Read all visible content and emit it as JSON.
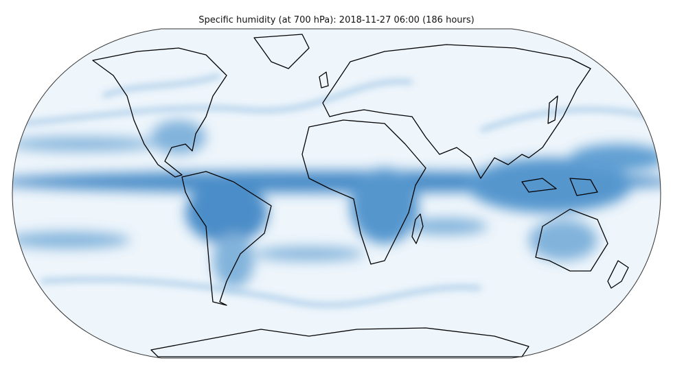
{
  "title": "Specific humidity (at 700 hPa): 2018-11-27 06:00 (186 hours)"
}
